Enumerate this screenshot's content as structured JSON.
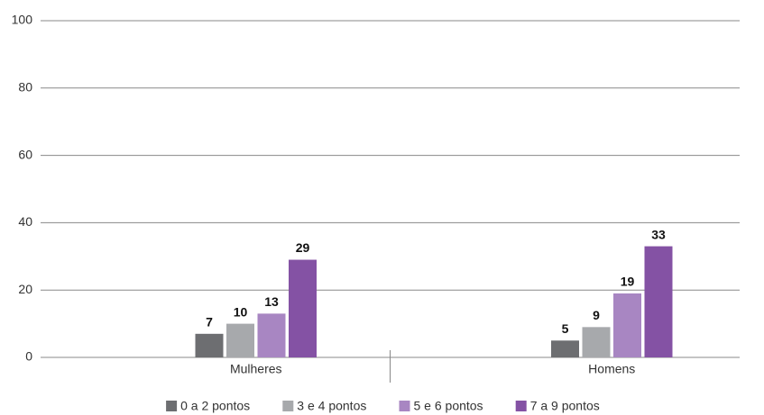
{
  "chart_data": {
    "type": "bar",
    "categories": [
      "Mulheres",
      "Homens"
    ],
    "series": [
      {
        "name": "0 a 2 pontos",
        "color": "#6d6e71",
        "values": [
          7,
          5
        ]
      },
      {
        "name": "3 e 4 pontos",
        "color": "#a7a9ac",
        "values": [
          10,
          9
        ]
      },
      {
        "name": "5 e 6 pontos",
        "color": "#a886c2",
        "values": [
          13,
          19
        ]
      },
      {
        "name": "7 a 9 pontos",
        "color": "#8452a4",
        "values": [
          29,
          33
        ]
      }
    ],
    "ylim": [
      0,
      100
    ],
    "yticks": [
      0,
      20,
      40,
      60,
      80,
      100
    ],
    "grid": true,
    "legend": "bottom"
  }
}
